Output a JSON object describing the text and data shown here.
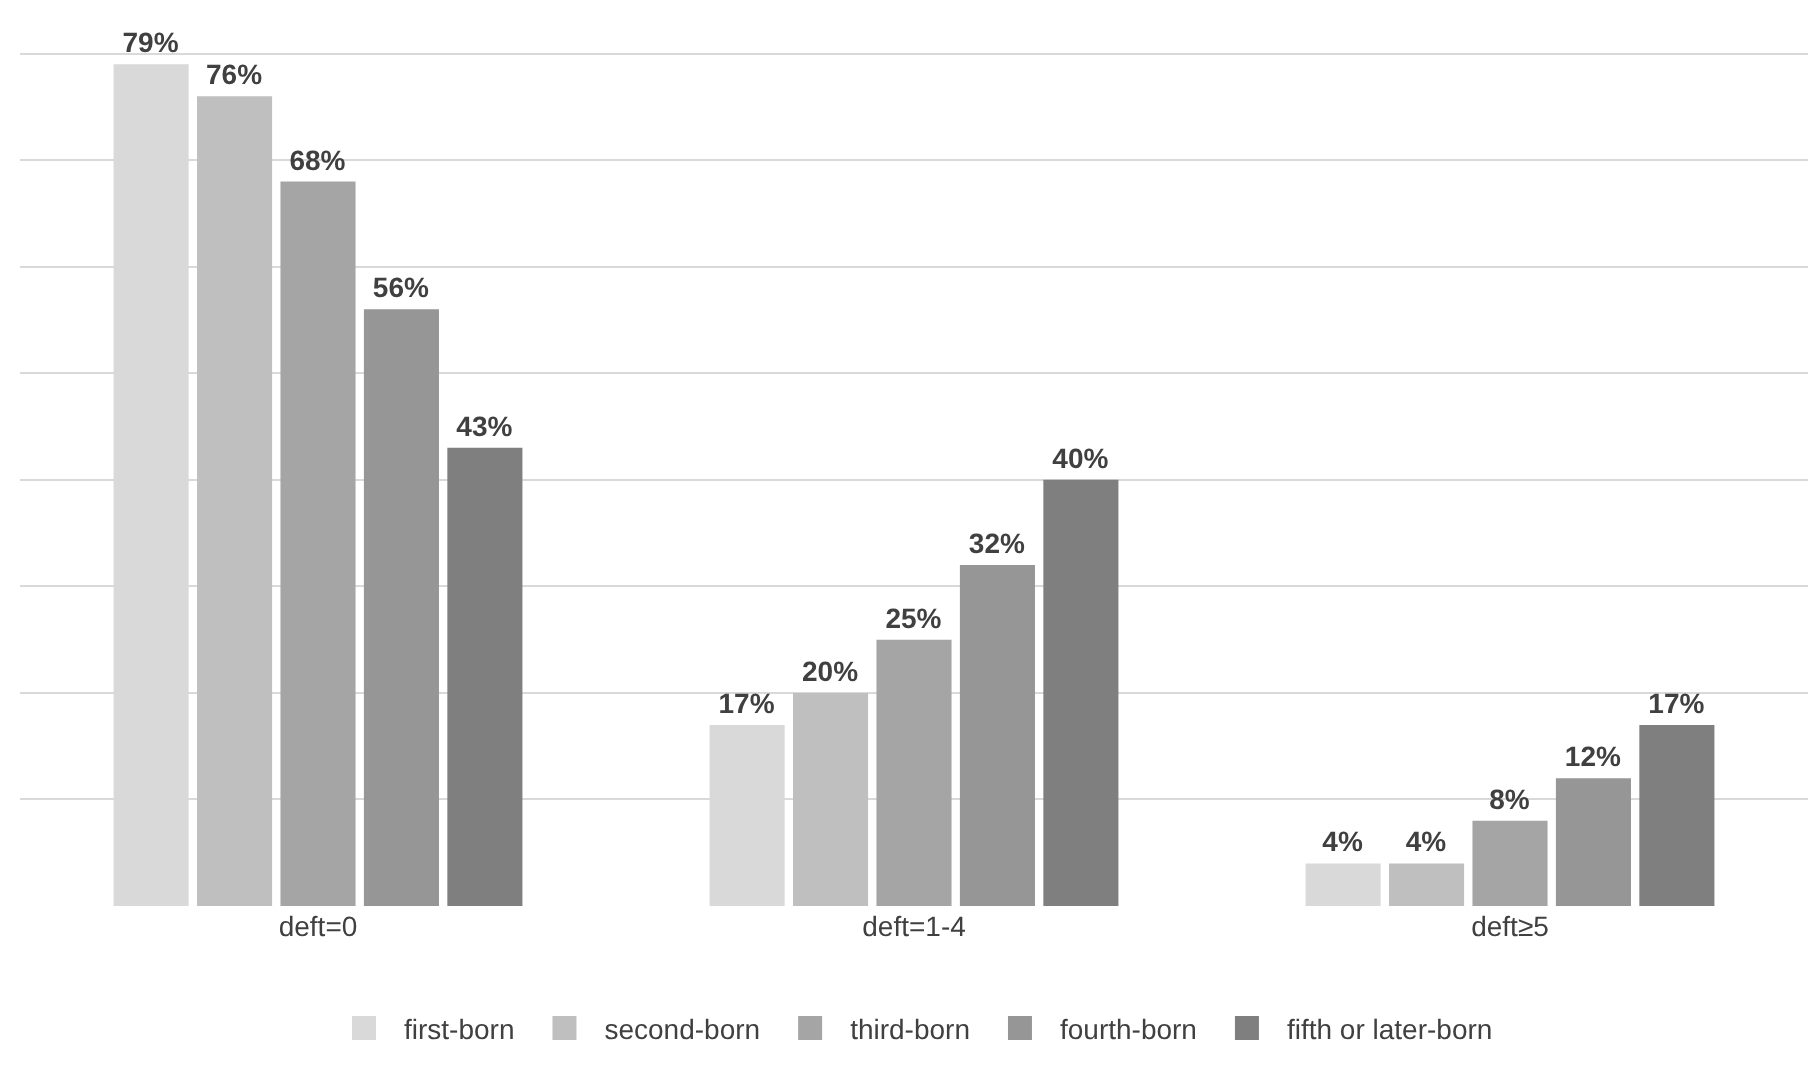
{
  "chart_data": {
    "type": "bar",
    "categories": [
      "deft=0",
      "deft=1-4",
      "deft≥5"
    ],
    "series": [
      {
        "name": "first-born",
        "color": "#d9d9d9",
        "values": [
          79,
          17,
          4
        ],
        "value_labels": [
          "79%",
          "17%",
          "4%"
        ]
      },
      {
        "name": "second-born",
        "color": "#bfbfbf",
        "values": [
          76,
          20,
          4
        ],
        "value_labels": [
          "76%",
          "20%",
          "4%"
        ]
      },
      {
        "name": "third-born",
        "color": "#a5a5a5",
        "values": [
          68,
          25,
          8
        ],
        "value_labels": [
          "68%",
          "25%",
          "8%"
        ]
      },
      {
        "name": "fourth-born",
        "color": "#969696",
        "values": [
          56,
          32,
          12
        ],
        "value_labels": [
          "56%",
          "32%",
          "12%"
        ]
      },
      {
        "name": "fifth or later-born",
        "color": "#7f7f7f",
        "values": [
          43,
          40,
          17
        ],
        "value_labels": [
          "43%",
          "40%",
          "17%"
        ]
      }
    ],
    "grid": "y",
    "legend": "bottom",
    "tick_labels": "x"
  }
}
